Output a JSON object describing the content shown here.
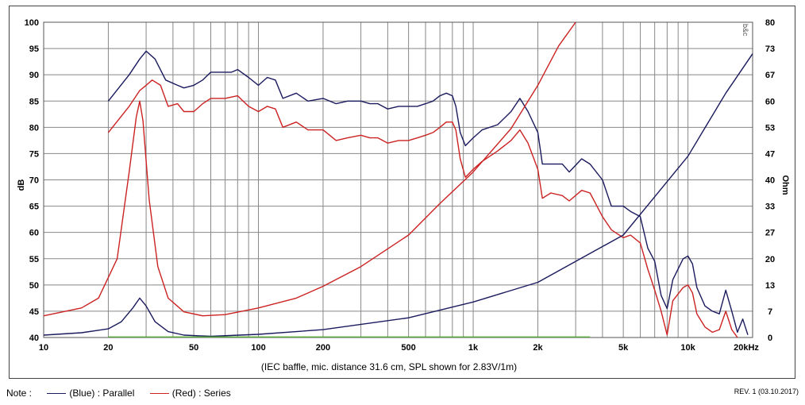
{
  "chart_data": {
    "type": "line",
    "x_axis": {
      "scale": "log",
      "range": [
        10,
        20000
      ],
      "tick_labels": [
        {
          "value": 10,
          "label": "10"
        },
        {
          "value": 20,
          "label": "20"
        },
        {
          "value": 50,
          "label": "50"
        },
        {
          "value": 100,
          "label": "100"
        },
        {
          "value": 200,
          "label": "200"
        },
        {
          "value": 500,
          "label": "500"
        },
        {
          "value": 1000,
          "label": "1k"
        },
        {
          "value": 2000,
          "label": "2k"
        },
        {
          "value": 5000,
          "label": "5k"
        },
        {
          "value": 10000,
          "label": "10k"
        },
        {
          "value": 20000,
          "label": "20kHz"
        }
      ]
    },
    "y_left": {
      "label": "dB",
      "range": [
        40,
        100
      ],
      "ticks": [
        40,
        45,
        50,
        55,
        60,
        65,
        70,
        75,
        80,
        85,
        90,
        95,
        100
      ]
    },
    "y_right": {
      "label": "Ohm",
      "range": [
        0,
        80
      ],
      "ticks": [
        "0",
        "7",
        "13",
        "20",
        "27",
        "33",
        "40",
        "47",
        "53",
        "60",
        "67",
        "73",
        "80"
      ]
    },
    "caption": "(IEC baffle, mic. distance 31.6 cm, SPL shown for 2.83V/1m)",
    "watermark": "b&c",
    "grid": true,
    "series": [
      {
        "name": "(Blue)  : Parallel",
        "quantity": "SPL",
        "axis": "left",
        "color": "#1a1a5e",
        "points": [
          [
            20,
            85
          ],
          [
            25,
            90
          ],
          [
            28,
            93
          ],
          [
            30,
            94.5
          ],
          [
            33,
            93
          ],
          [
            37,
            89
          ],
          [
            42,
            88
          ],
          [
            45,
            87.5
          ],
          [
            50,
            88
          ],
          [
            55,
            89
          ],
          [
            60,
            90.5
          ],
          [
            70,
            90.5
          ],
          [
            75,
            90.5
          ],
          [
            80,
            91
          ],
          [
            90,
            89.5
          ],
          [
            100,
            88
          ],
          [
            110,
            89.5
          ],
          [
            120,
            89
          ],
          [
            130,
            85.5
          ],
          [
            150,
            86.5
          ],
          [
            170,
            85
          ],
          [
            200,
            85.5
          ],
          [
            230,
            84.5
          ],
          [
            260,
            85
          ],
          [
            300,
            85
          ],
          [
            330,
            84.5
          ],
          [
            360,
            84.5
          ],
          [
            400,
            83.5
          ],
          [
            450,
            84
          ],
          [
            500,
            84
          ],
          [
            550,
            84
          ],
          [
            600,
            84.5
          ],
          [
            650,
            85
          ],
          [
            700,
            86
          ],
          [
            750,
            86.5
          ],
          [
            800,
            86
          ],
          [
            830,
            84
          ],
          [
            870,
            79
          ],
          [
            920,
            76.5
          ],
          [
            1000,
            78
          ],
          [
            1100,
            79.5
          ],
          [
            1300,
            80.5
          ],
          [
            1500,
            83
          ],
          [
            1650,
            85.5
          ],
          [
            1800,
            83
          ],
          [
            2000,
            79
          ],
          [
            2100,
            73
          ],
          [
            2300,
            73
          ],
          [
            2600,
            73
          ],
          [
            2800,
            71.5
          ],
          [
            3200,
            74
          ],
          [
            3500,
            73
          ],
          [
            4000,
            70
          ],
          [
            4400,
            65
          ],
          [
            5000,
            65
          ],
          [
            5400,
            64
          ],
          [
            6000,
            63
          ],
          [
            6500,
            57
          ],
          [
            7000,
            54.5
          ],
          [
            7500,
            48
          ],
          [
            8000,
            45.5
          ],
          [
            8500,
            51
          ],
          [
            9500,
            55
          ],
          [
            10000,
            55.5
          ],
          [
            10500,
            54
          ],
          [
            11000,
            49.5
          ],
          [
            12000,
            46
          ],
          [
            13000,
            45
          ],
          [
            14000,
            44.5
          ],
          [
            15000,
            49
          ],
          [
            16000,
            45
          ],
          [
            17000,
            41
          ],
          [
            18000,
            43.5
          ],
          [
            19000,
            40.5
          ]
        ]
      },
      {
        "name": "(Red)  : Series",
        "quantity": "SPL",
        "axis": "left",
        "color": "#cc2222",
        "points": [
          [
            20,
            79
          ],
          [
            25,
            84
          ],
          [
            28,
            87
          ],
          [
            30,
            88
          ],
          [
            32,
            89
          ],
          [
            35,
            88
          ],
          [
            38,
            84
          ],
          [
            42,
            84.5
          ],
          [
            45,
            83
          ],
          [
            50,
            83
          ],
          [
            55,
            84.5
          ],
          [
            60,
            85.5
          ],
          [
            70,
            85.5
          ],
          [
            80,
            86
          ],
          [
            90,
            84
          ],
          [
            100,
            83
          ],
          [
            110,
            84
          ],
          [
            120,
            83.5
          ],
          [
            130,
            80
          ],
          [
            150,
            81
          ],
          [
            170,
            79.5
          ],
          [
            200,
            79.5
          ],
          [
            230,
            77.5
          ],
          [
            260,
            78
          ],
          [
            300,
            78.5
          ],
          [
            330,
            78
          ],
          [
            360,
            78
          ],
          [
            400,
            77
          ],
          [
            450,
            77.5
          ],
          [
            500,
            77.5
          ],
          [
            550,
            78
          ],
          [
            600,
            78.5
          ],
          [
            650,
            79
          ],
          [
            700,
            80
          ],
          [
            750,
            81
          ],
          [
            800,
            81
          ],
          [
            830,
            79.5
          ],
          [
            870,
            74
          ],
          [
            920,
            70.5
          ],
          [
            1000,
            72
          ],
          [
            1100,
            73.5
          ],
          [
            1300,
            75.5
          ],
          [
            1500,
            77.5
          ],
          [
            1650,
            79.5
          ],
          [
            1800,
            77
          ],
          [
            2000,
            72
          ],
          [
            2100,
            66.5
          ],
          [
            2300,
            67.5
          ],
          [
            2600,
            67
          ],
          [
            2800,
            66
          ],
          [
            3200,
            68
          ],
          [
            3500,
            67.5
          ],
          [
            4000,
            63
          ],
          [
            4400,
            60.5
          ],
          [
            5000,
            59
          ],
          [
            5400,
            59.5
          ],
          [
            6000,
            58
          ],
          [
            6500,
            53
          ],
          [
            7000,
            49
          ],
          [
            7500,
            45
          ],
          [
            8000,
            40.5
          ],
          [
            8500,
            47
          ],
          [
            9500,
            49.5
          ],
          [
            10000,
            50
          ],
          [
            10500,
            48.5
          ],
          [
            11000,
            44.5
          ],
          [
            12000,
            42
          ],
          [
            13000,
            41
          ],
          [
            14000,
            41.5
          ],
          [
            15000,
            45
          ],
          [
            16000,
            41.5
          ],
          [
            17000,
            40
          ]
        ]
      },
      {
        "name": "(Blue)  : Parallel",
        "quantity": "Impedance",
        "axis": "right",
        "color": "#1a1a5e",
        "points": [
          [
            10,
            0.6
          ],
          [
            15,
            1.2
          ],
          [
            20,
            2.2
          ],
          [
            23,
            4
          ],
          [
            26,
            7.5
          ],
          [
            28,
            10
          ],
          [
            30,
            8
          ],
          [
            33,
            4
          ],
          [
            38,
            1.5
          ],
          [
            45,
            0.6
          ],
          [
            60,
            0.3
          ],
          [
            100,
            0.8
          ],
          [
            200,
            2
          ],
          [
            500,
            5
          ],
          [
            1000,
            9
          ],
          [
            2000,
            14
          ],
          [
            5000,
            26
          ],
          [
            10000,
            46
          ],
          [
            15000,
            62
          ],
          [
            20000,
            72
          ]
        ]
      },
      {
        "name": "(Red)  : Series",
        "quantity": "Impedance",
        "axis": "right",
        "color": "#cc2222",
        "points": [
          [
            10,
            5.5
          ],
          [
            15,
            7.5
          ],
          [
            18,
            10
          ],
          [
            22,
            20
          ],
          [
            25,
            42
          ],
          [
            27,
            56
          ],
          [
            28,
            60
          ],
          [
            29,
            55
          ],
          [
            31,
            35
          ],
          [
            34,
            18
          ],
          [
            38,
            10
          ],
          [
            45,
            6.5
          ],
          [
            55,
            5.5
          ],
          [
            70,
            5.8
          ],
          [
            100,
            7.5
          ],
          [
            150,
            10
          ],
          [
            200,
            13
          ],
          [
            300,
            18
          ],
          [
            500,
            26
          ],
          [
            700,
            34
          ],
          [
            1000,
            42
          ],
          [
            1500,
            53
          ],
          [
            2000,
            64
          ],
          [
            2500,
            74
          ],
          [
            3000,
            80.5
          ]
        ]
      },
      {
        "name": "",
        "quantity": "Reference",
        "axis": "left",
        "color": "#55aa33",
        "points": [
          [
            20,
            40.1
          ],
          [
            3500,
            40.1
          ]
        ]
      }
    ]
  },
  "note": {
    "label": "Note :",
    "items": [
      {
        "text": "(Blue)  : Parallel",
        "color": "#1a1a5e"
      },
      {
        "text": "(Red)  : Series",
        "color": "#cc2222"
      }
    ]
  },
  "revision": "REV. 1 (03.10.2017)"
}
